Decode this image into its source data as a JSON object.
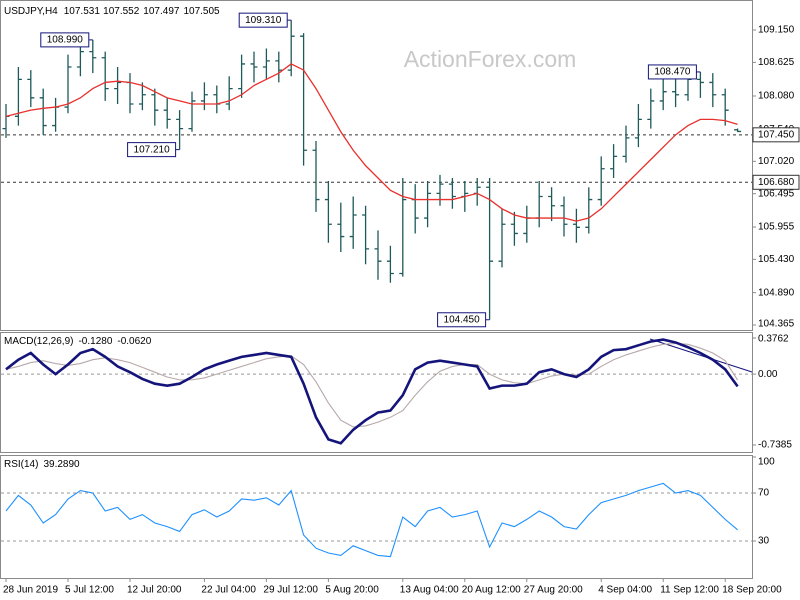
{
  "chart_data": [
    {
      "type": "ohlc",
      "symbol": "USDJPY,H4",
      "color": "#1f5a5a",
      "categories": [
        "28 Jun 2019",
        null,
        null,
        null,
        null,
        "5 Jul 12:00",
        null,
        null,
        null,
        null,
        "12 Jul 20:00",
        null,
        null,
        null,
        null,
        null,
        "22 Jul 04:00",
        null,
        null,
        null,
        null,
        "29 Jul 12:00",
        null,
        null,
        null,
        null,
        "5 Aug 20:00",
        null,
        null,
        null,
        null,
        null,
        "13 Aug 04:00",
        null,
        null,
        null,
        null,
        "20 Aug 12:00",
        null,
        null,
        null,
        null,
        "27 Aug 20:00",
        null,
        null,
        null,
        null,
        null,
        "4 Sep 04:00",
        null,
        null,
        null,
        null,
        "11 Sep 12:00",
        null,
        null,
        null,
        null,
        "18 Sep 20:00",
        null
      ],
      "open": [
        107.55,
        107.75,
        108.35,
        108.05,
        107.6,
        107.9,
        108.55,
        108.8,
        108.7,
        108.2,
        108.3,
        107.95,
        108.1,
        107.85,
        107.7,
        107.55,
        108.0,
        108.1,
        107.95,
        108.2,
        108.6,
        108.55,
        108.65,
        108.5,
        109.05,
        107.2,
        106.4,
        106.0,
        105.8,
        106.15,
        105.6,
        105.4,
        105.2,
        106.4,
        106.1,
        106.5,
        106.65,
        106.45,
        106.5,
        106.6,
        105.4,
        106.0,
        105.85,
        106.1,
        106.45,
        106.3,
        106.0,
        105.95,
        106.4,
        106.9,
        107.1,
        107.4,
        107.7,
        108.0,
        108.15,
        108.1,
        108.35,
        108.3,
        108.1,
        107.531
      ],
      "high": [
        107.95,
        108.55,
        108.5,
        108.2,
        108.05,
        108.75,
        108.95,
        108.99,
        108.8,
        108.55,
        108.45,
        108.3,
        108.2,
        108.05,
        107.85,
        108.15,
        108.3,
        108.25,
        108.4,
        108.75,
        108.8,
        108.85,
        108.8,
        109.31,
        109.1,
        107.35,
        106.7,
        106.35,
        106.45,
        106.3,
        105.9,
        105.65,
        106.75,
        106.65,
        106.7,
        106.8,
        106.75,
        106.7,
        106.75,
        106.75,
        106.25,
        106.2,
        106.3,
        106.7,
        106.6,
        106.45,
        106.25,
        106.6,
        107.1,
        107.3,
        107.6,
        107.95,
        108.2,
        108.35,
        108.4,
        108.45,
        108.47,
        108.45,
        108.2,
        107.552
      ],
      "low": [
        107.4,
        107.6,
        107.9,
        107.45,
        107.5,
        107.8,
        108.4,
        108.45,
        108.0,
        107.95,
        107.8,
        107.85,
        107.6,
        107.55,
        107.21,
        107.5,
        107.85,
        107.8,
        107.85,
        108.05,
        108.3,
        108.35,
        108.3,
        108.4,
        106.95,
        106.2,
        105.7,
        105.55,
        105.6,
        105.35,
        105.1,
        105.05,
        105.15,
        105.85,
        105.95,
        106.3,
        106.25,
        106.2,
        106.3,
        104.45,
        105.3,
        105.65,
        105.7,
        105.95,
        106.05,
        105.8,
        105.7,
        105.85,
        106.3,
        106.75,
        107.0,
        107.25,
        107.55,
        107.85,
        107.9,
        108.0,
        108.05,
        107.9,
        107.6,
        107.497
      ],
      "close": [
        107.75,
        108.35,
        108.05,
        107.6,
        107.9,
        108.55,
        108.8,
        108.7,
        108.2,
        108.3,
        107.95,
        108.1,
        107.85,
        107.7,
        107.55,
        108.0,
        108.1,
        107.95,
        108.2,
        108.6,
        108.55,
        108.65,
        108.5,
        109.05,
        107.2,
        106.4,
        106.0,
        105.8,
        106.15,
        105.6,
        105.4,
        105.2,
        106.4,
        106.1,
        106.5,
        106.65,
        106.45,
        106.5,
        106.6,
        105.4,
        106.0,
        105.85,
        106.1,
        106.45,
        106.3,
        106.0,
        105.95,
        106.4,
        106.9,
        107.1,
        107.4,
        107.7,
        108.0,
        108.15,
        108.1,
        108.35,
        108.3,
        108.1,
        107.85,
        107.505
      ],
      "ma": {
        "color": "#e8302c",
        "values": [
          107.75,
          107.8,
          107.85,
          107.88,
          107.9,
          107.95,
          108.05,
          108.2,
          108.3,
          108.32,
          108.3,
          108.25,
          108.15,
          108.05,
          108.0,
          107.95,
          107.95,
          107.95,
          108.0,
          108.1,
          108.25,
          108.35,
          108.45,
          108.6,
          108.5,
          108.2,
          107.85,
          107.5,
          107.2,
          106.95,
          106.75,
          106.55,
          106.45,
          106.4,
          106.4,
          106.4,
          106.4,
          106.45,
          106.5,
          106.4,
          106.25,
          106.15,
          106.1,
          106.1,
          106.1,
          106.1,
          106.05,
          106.1,
          106.25,
          106.45,
          106.65,
          106.85,
          107.05,
          107.25,
          107.45,
          107.6,
          107.7,
          107.7,
          107.68,
          107.62
        ]
      },
      "ylim": [
        104.284,
        109.637
      ],
      "yticks": [
        {
          "value": 109.15,
          "label": "109.150"
        },
        108.625,
        {
          "value": 108.08,
          "label": "108.080"
        },
        {
          "value": 107.54,
          "label": "107.540"
        },
        {
          "value": 107.02,
          "label": "107.020"
        },
        106.495,
        105.955,
        {
          "value": 105.43,
          "label": "105.430"
        },
        {
          "value": 104.89,
          "label": "104.890"
        },
        104.365
      ],
      "hlines": [
        {
          "value": 107.45,
          "label": "107.450"
        },
        {
          "value": 106.68,
          "label": "106.680"
        }
      ],
      "annotations": [
        {
          "value": 108.99,
          "label": "108.990"
        },
        {
          "value": 109.31,
          "label": "109.310"
        },
        {
          "value": 107.21,
          "label": "107.210"
        },
        {
          "value": 104.45,
          "label": "104.450"
        },
        {
          "value": 108.47,
          "label": "108.470"
        }
      ],
      "watermark": "ActionForex.com"
    },
    {
      "type": "macd",
      "title": "MACD(12,26,9)",
      "series": [
        {
          "color": "#14147a",
          "last_label": "-0.1280",
          "values": [
            0.05,
            0.15,
            0.22,
            0.1,
            0.0,
            0.1,
            0.22,
            0.26,
            0.18,
            0.08,
            0.02,
            -0.05,
            -0.1,
            -0.12,
            -0.1,
            -0.03,
            0.05,
            0.1,
            0.14,
            0.18,
            0.2,
            0.22,
            0.2,
            0.18,
            -0.1,
            -0.45,
            -0.68,
            -0.72,
            -0.58,
            -0.48,
            -0.4,
            -0.38,
            -0.22,
            0.05,
            0.12,
            0.14,
            0.12,
            0.1,
            0.08,
            -0.15,
            -0.12,
            -0.12,
            -0.1,
            0.02,
            0.05,
            0.0,
            -0.03,
            0.05,
            0.18,
            0.25,
            0.26,
            0.3,
            0.34,
            0.36,
            0.33,
            0.28,
            0.22,
            0.15,
            0.05,
            -0.128
          ]
        },
        {
          "color": "#b8a9a9",
          "last_label": "-0.0620",
          "values": [
            0.05,
            0.08,
            0.12,
            0.14,
            0.11,
            0.09,
            0.11,
            0.15,
            0.17,
            0.15,
            0.12,
            0.07,
            0.02,
            -0.03,
            -0.06,
            -0.06,
            -0.04,
            0.0,
            0.04,
            0.08,
            0.12,
            0.16,
            0.18,
            0.19,
            0.1,
            -0.08,
            -0.3,
            -0.48,
            -0.55,
            -0.54,
            -0.5,
            -0.45,
            -0.38,
            -0.22,
            -0.08,
            0.03,
            0.08,
            0.1,
            0.1,
            0.0,
            -0.06,
            -0.09,
            -0.1,
            -0.06,
            -0.02,
            0.0,
            -0.01,
            0.0,
            0.08,
            0.15,
            0.2,
            0.24,
            0.28,
            0.31,
            0.32,
            0.31,
            0.27,
            0.22,
            0.14,
            -0.062
          ]
        }
      ],
      "ylim": [
        -0.8114,
        0.4387
      ],
      "yticks": [
        0.3762,
        {
          "value": 0,
          "label": "0.00"
        },
        -0.7385
      ],
      "levels": [
        0
      ]
    },
    {
      "type": "rsi",
      "title": "RSI(14)",
      "series": [
        {
          "color": "#1e90ff",
          "last_label": "39.2890",
          "values": [
            55,
            68,
            60,
            45,
            52,
            65,
            72,
            70,
            55,
            58,
            48,
            52,
            45,
            42,
            38,
            52,
            56,
            50,
            55,
            65,
            64,
            66,
            60,
            72,
            35,
            24,
            20,
            18,
            26,
            22,
            18,
            17,
            50,
            42,
            55,
            58,
            50,
            52,
            55,
            25,
            45,
            42,
            48,
            55,
            50,
            42,
            40,
            52,
            62,
            65,
            68,
            72,
            75,
            78,
            70,
            72,
            68,
            58,
            48,
            39.289
          ]
        }
      ],
      "ylim": [
        -0.83,
        101.67
      ],
      "yticks": [
        100,
        70,
        30
      ],
      "levels": [
        70,
        30
      ]
    }
  ]
}
